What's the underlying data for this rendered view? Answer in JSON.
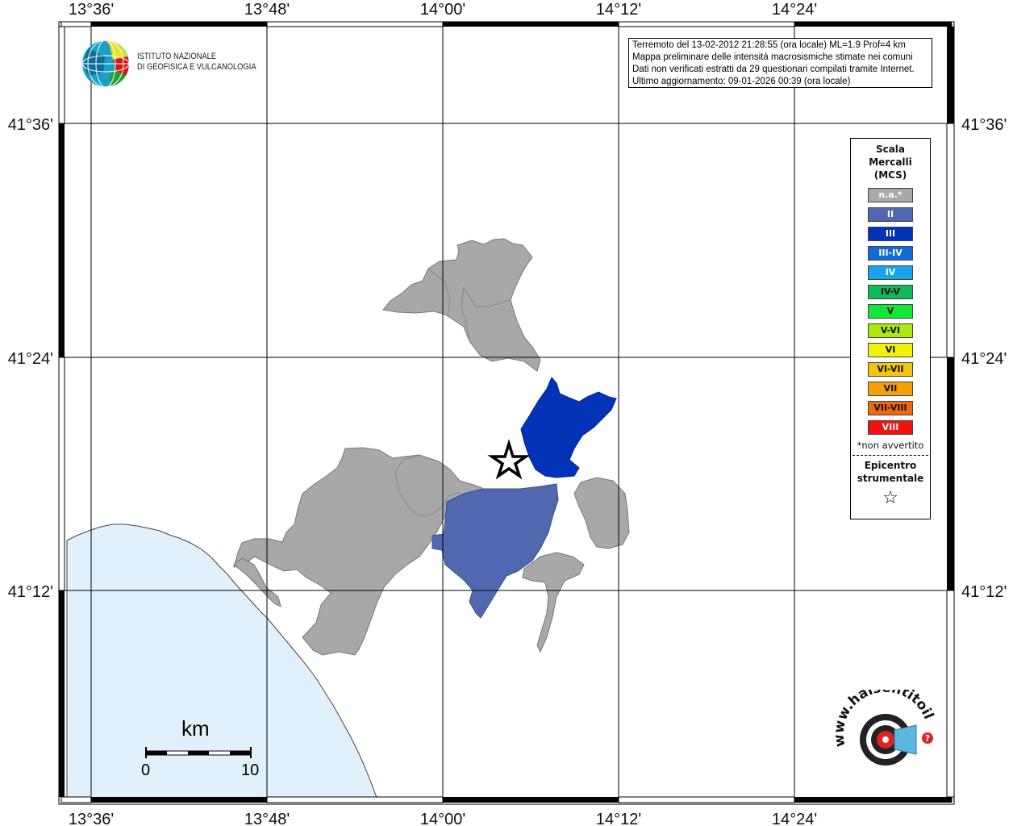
{
  "info": {
    "line1": "Terremoto del 13-02-2012 21:28:55 (ora locale) ML=1.9 Prof=4 km",
    "line2": "Mappa preliminare delle intensità macrosismiche stimate nei comuni",
    "line3": "Dati non verificati estratti da 29 questionari compilati tramite Internet.",
    "line4": "Ultimo aggiornamento: 09-01-2026 00:39 (ora locale)"
  },
  "logo": {
    "line1": "ISTITUTO NAZIONALE",
    "line2": "DI GEOFISICA E VULCANOLOGIA"
  },
  "axes": {
    "lon_labels": [
      "13°36'",
      "13°48'",
      "14°00'",
      "14°12'",
      "14°24'"
    ],
    "lat_labels": [
      "41°36'",
      "41°24'",
      "41°12'"
    ]
  },
  "legend": {
    "title_line1": "Scala",
    "title_line2": "Mercalli",
    "title_line3": "(MCS)",
    "items": [
      {
        "label": "n.a.*",
        "color": "#a9a9a9"
      },
      {
        "label": "II",
        "color": "#5068b0"
      },
      {
        "label": "III",
        "color": "#0433b8"
      },
      {
        "label": "III-IV",
        "color": "#0f6bd8"
      },
      {
        "label": "IV",
        "color": "#19a3ea"
      },
      {
        "label": "IV-V",
        "color": "#10b85a"
      },
      {
        "label": "V",
        "color": "#13e636"
      },
      {
        "label": "V-VI",
        "color": "#a8ea10"
      },
      {
        "label": "VI",
        "color": "#f5f20a"
      },
      {
        "label": "VI-VII",
        "color": "#f3c50c"
      },
      {
        "label": "VII",
        "color": "#f7a00a"
      },
      {
        "label": "VII-VIII",
        "color": "#f06a0a"
      },
      {
        "label": "VIII",
        "color": "#f21010"
      }
    ],
    "note": "*non avvertito",
    "epicenter_line1": "Epicentro",
    "epicenter_line2": "strumentale",
    "epicenter_symbol": "☆"
  },
  "scale": {
    "unit": "km",
    "min": "0",
    "max": "10"
  },
  "colors": {
    "sea": "#e0f1fc",
    "na": "#a8a8a8",
    "intensity_II": "#5068b0",
    "intensity_III": "#0433b8"
  },
  "credit": {
    "site": "www.haisentitoilterremoto.it"
  }
}
